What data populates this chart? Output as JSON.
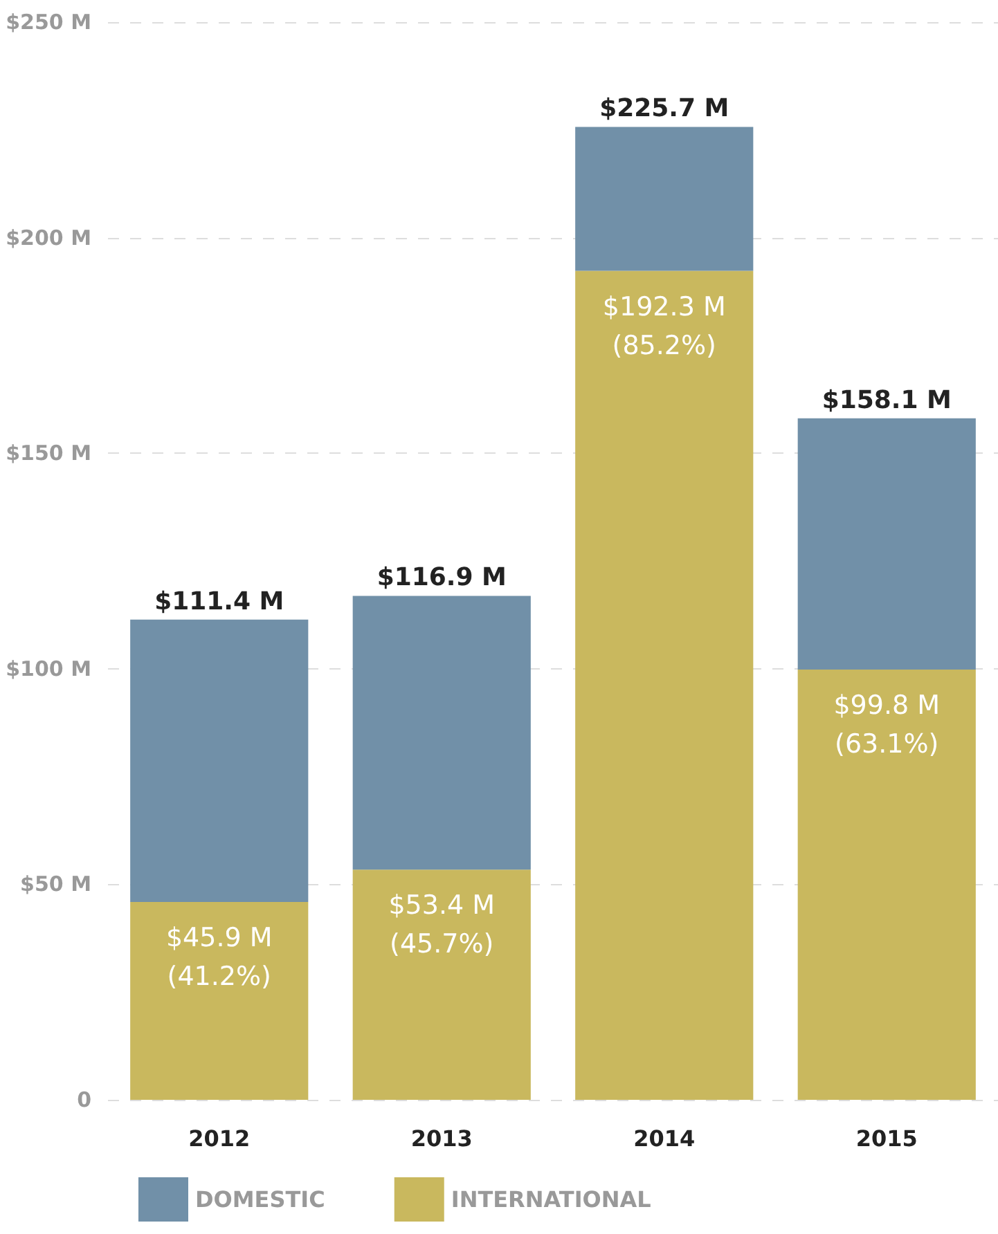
{
  "chart_data": {
    "type": "bar",
    "stacked": true,
    "categories": [
      "2012",
      "2013",
      "2014",
      "2015"
    ],
    "series": [
      {
        "name": "INTERNATIONAL",
        "color": "#c9b85e",
        "values": [
          45.9,
          53.4,
          192.3,
          99.8
        ],
        "value_labels": [
          "$45.9 M\n(41.2%)",
          "$53.4 M\n(45.7%)",
          "$192.3 M\n(85.2%)",
          "$99.8 M\n(63.1%)"
        ]
      },
      {
        "name": "DOMESTIC",
        "color": "#7190a8",
        "values": [
          65.5,
          63.5,
          33.4,
          58.3
        ]
      }
    ],
    "totals": [
      "$111.4 M",
      "$116.9 M",
      "$225.7 M",
      "$158.1 M"
    ],
    "ylim": [
      0,
      250
    ],
    "yticks": [
      0,
      {
        "value": 50,
        "label": "$50 M"
      },
      {
        "value": 100,
        "label": "$100 M"
      },
      {
        "value": 150,
        "label": "$150 M"
      },
      {
        "value": 200,
        "label": "$200 M"
      },
      {
        "value": 250,
        "label": "$250 M"
      }
    ],
    "grid": "y",
    "legend": "bottom left"
  }
}
